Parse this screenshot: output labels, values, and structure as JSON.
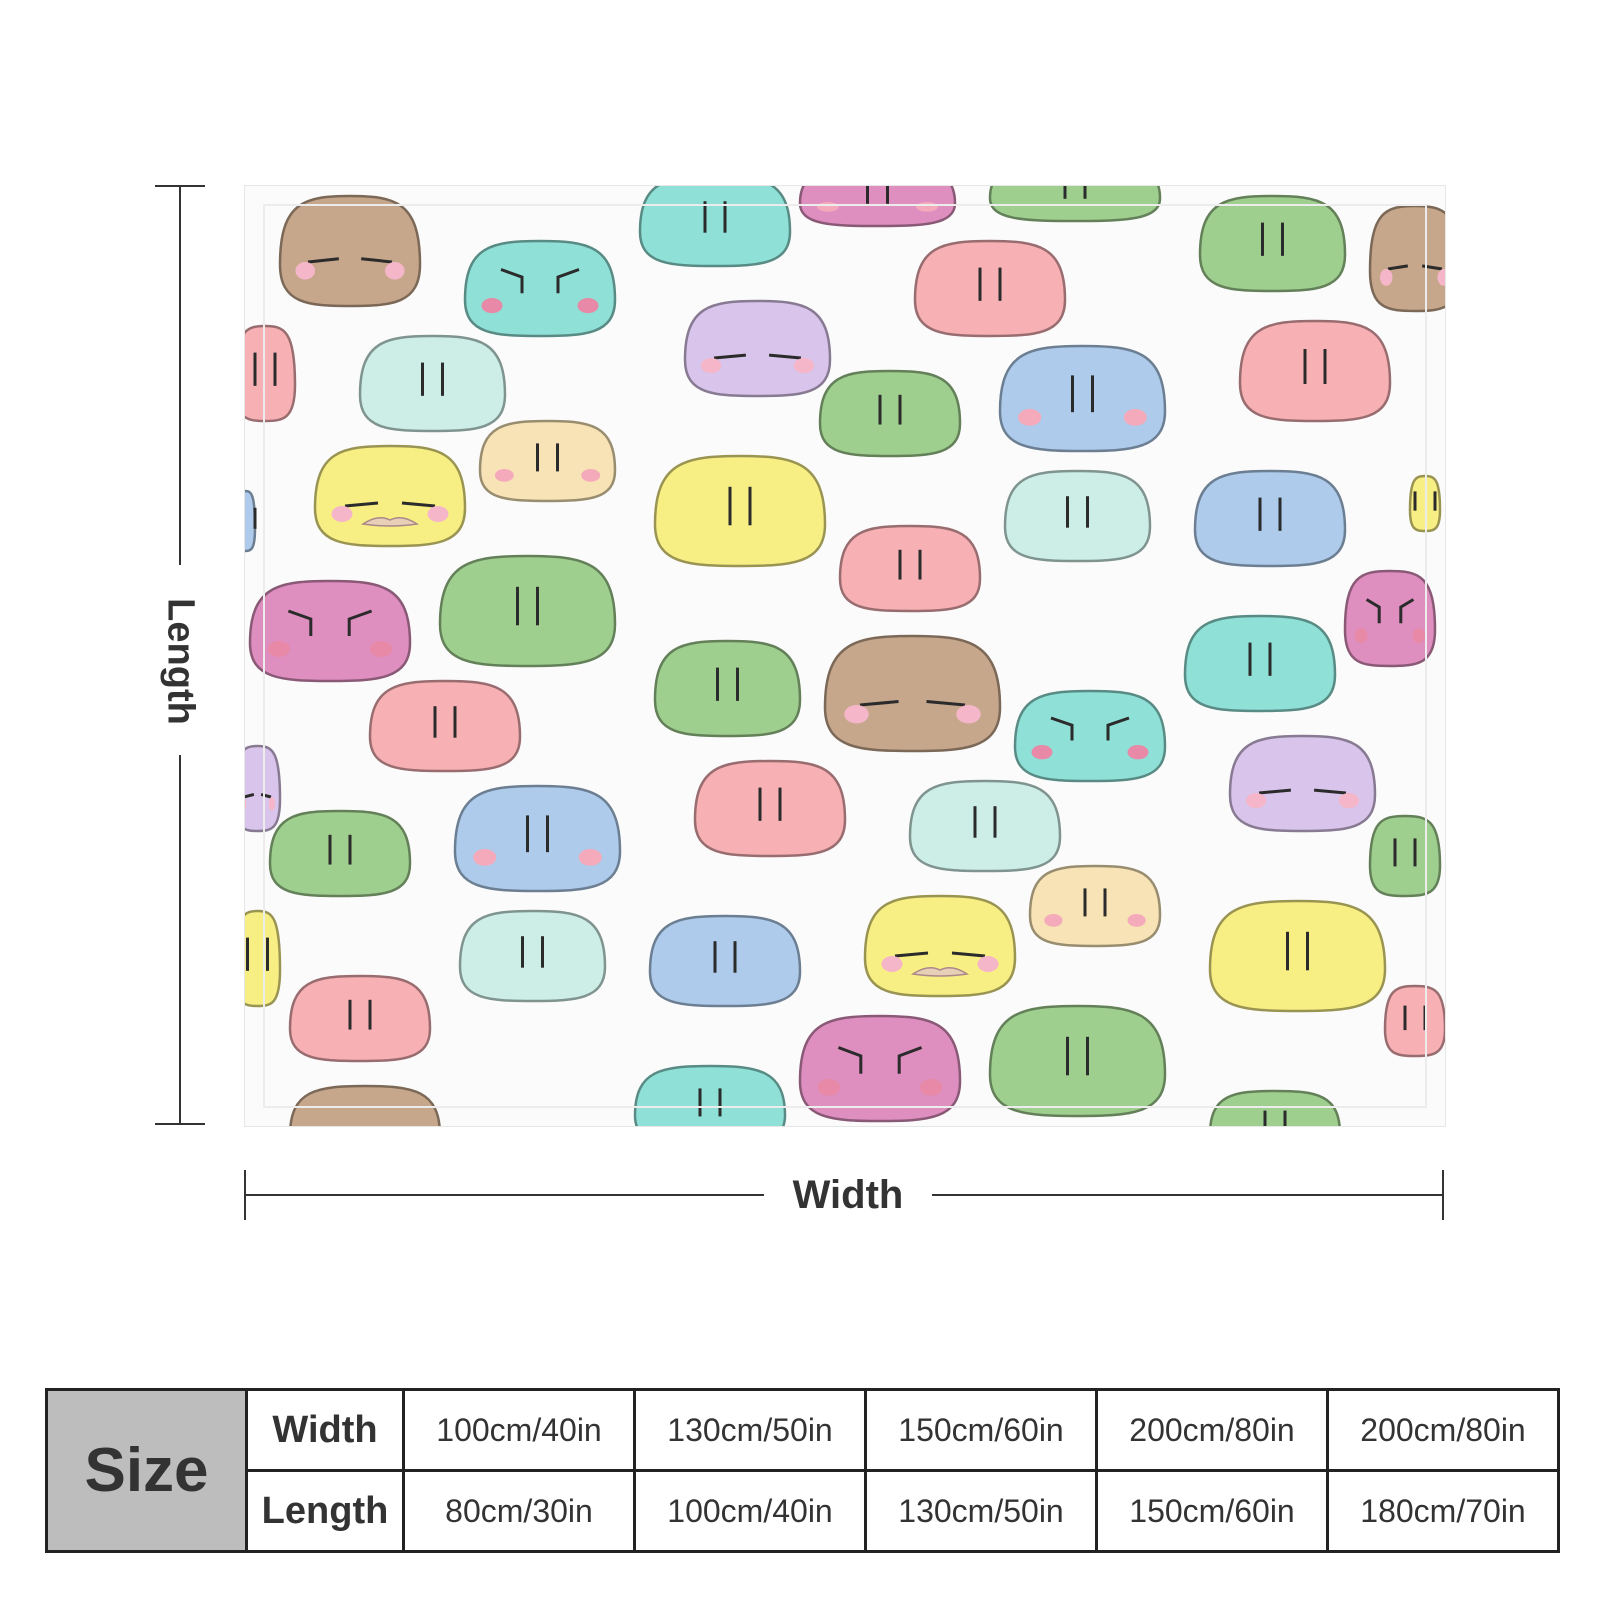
{
  "dimensions": {
    "length_label": "Length",
    "width_label": "Width"
  },
  "size_table": {
    "size_label": "Size",
    "width_label": "Width",
    "length_label": "Length",
    "widths": [
      "100cm/40in",
      "130cm/50in",
      "150cm/60in",
      "200cm/80in",
      "200cm/80in"
    ],
    "lengths": [
      "80cm/30in",
      "100cm/40in",
      "130cm/50in",
      "150cm/60in",
      "180cm/70in"
    ]
  },
  "colors": {
    "green": "#9fcf8f",
    "teal": "#8fe0d6",
    "pink": "#f7b0b4",
    "brown": "#c6a78c",
    "lilac": "#d9c5eb",
    "mint": "#cdeee6",
    "yellow": "#f8ef84",
    "cream": "#f7e3b5",
    "blue": "#aecbeb",
    "magenta": "#de8fbf"
  }
}
